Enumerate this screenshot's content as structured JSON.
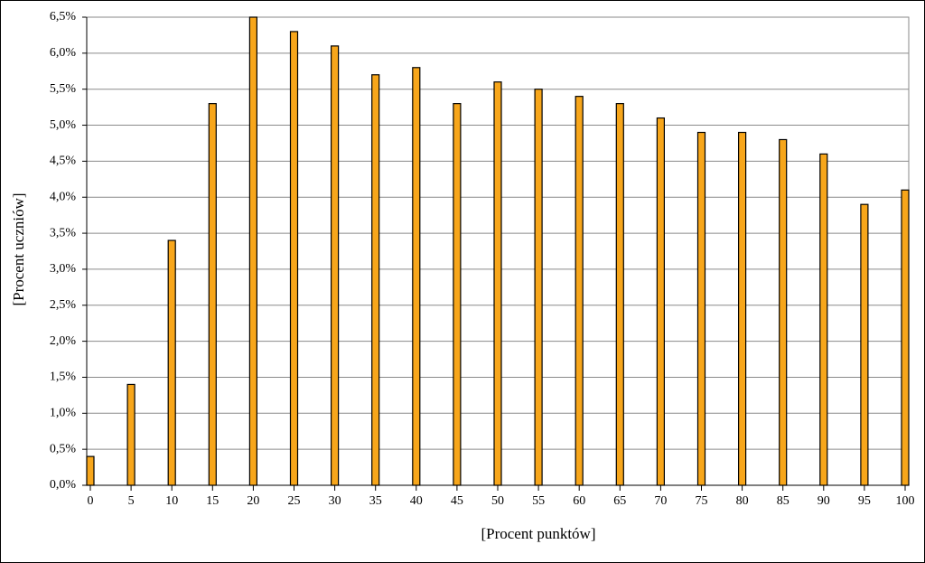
{
  "chart_data": {
    "type": "bar",
    "x": [
      0,
      5,
      10,
      15,
      20,
      25,
      30,
      35,
      40,
      45,
      50,
      55,
      60,
      65,
      70,
      75,
      80,
      85,
      90,
      95,
      100
    ],
    "values": [
      0.4,
      1.4,
      3.4,
      5.3,
      6.5,
      6.3,
      6.1,
      5.7,
      5.8,
      5.3,
      5.6,
      5.5,
      5.4,
      5.3,
      5.1,
      4.9,
      4.9,
      4.8,
      4.6,
      3.9,
      4.1
    ],
    "color": "#f7a61b",
    "xlim": [
      0,
      100
    ],
    "xticks": [
      0,
      5,
      10,
      15,
      20,
      25,
      30,
      35,
      40,
      45,
      50,
      55,
      60,
      65,
      70,
      75,
      80,
      85,
      90,
      95,
      100
    ],
    "ylim": [
      0,
      6.5
    ],
    "yticks": [
      {
        "value": 0,
        "label": "0,0%"
      },
      {
        "value": 0.5,
        "label": "0,5%"
      },
      {
        "value": 1,
        "label": "1,0%"
      },
      {
        "value": 1.5,
        "label": "1,5%"
      },
      {
        "value": 2,
        "label": "2,0%"
      },
      {
        "value": 2.5,
        "label": "2,5%"
      },
      {
        "value": 3,
        "label": "3,0%"
      },
      {
        "value": 3.5,
        "label": "3,5%"
      },
      {
        "value": 4,
        "label": "4,0%"
      },
      {
        "value": 4.5,
        "label": "4,5%"
      },
      {
        "value": 5,
        "label": "5,0%"
      },
      {
        "value": 5.5,
        "label": "5,5%"
      },
      {
        "value": 6,
        "label": "6,0%"
      },
      {
        "value": 6.5,
        "label": "6,5%"
      }
    ],
    "grid": true,
    "xlabel": "[Procent punktów]",
    "ylabel": "[Procent uczniów]"
  }
}
